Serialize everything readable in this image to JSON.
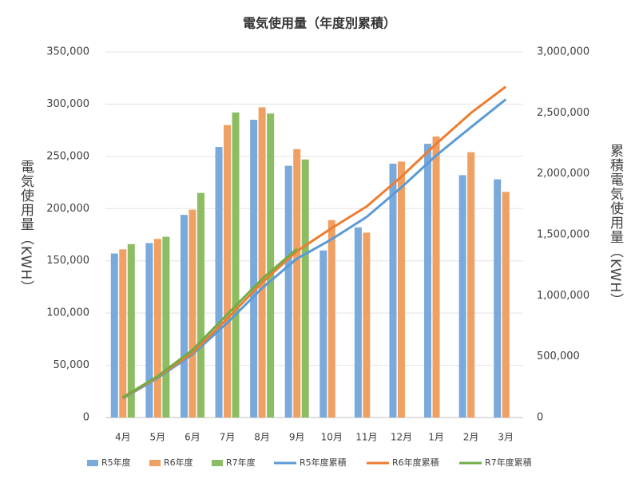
{
  "chart_data": {
    "type": "bar",
    "title": "電気使用量（年度別累積）",
    "y_label": "電気使用量（KWH）",
    "y2_label": "累積電気使用量（KWH）",
    "categories": [
      "4月",
      "5月",
      "6月",
      "7月",
      "8月",
      "9月",
      "10月",
      "11月",
      "12月",
      "1月",
      "2月",
      "3月"
    ],
    "series": [
      {
        "name": "R5年度",
        "color": "#7aa9db",
        "values": [
          157000,
          167000,
          194000,
          259000,
          285000,
          241000,
          160000,
          182000,
          243000,
          262000,
          232000,
          228000
        ]
      },
      {
        "name": "R6年度",
        "color": "#f0a062",
        "values": [
          161000,
          171000,
          199000,
          280000,
          297000,
          257000,
          189000,
          177000,
          245000,
          269000,
          254000,
          216000
        ]
      },
      {
        "name": "R7年度",
        "color": "#8dbd62",
        "values": [
          166000,
          173000,
          215000,
          292000,
          291000,
          247000,
          null,
          null,
          null,
          null,
          null,
          null
        ]
      },
      {
        "name": "R5年度累積",
        "type": "line",
        "axis": "y2",
        "color": "#5b9bd5",
        "values": [
          157000,
          324000,
          518000,
          777000,
          1062000,
          1303000,
          1463000,
          1645000,
          1888000,
          2150000,
          2382000,
          2610000
        ]
      },
      {
        "name": "R6年度累積",
        "type": "line",
        "axis": "y2",
        "color": "#ed7d31",
        "values": [
          161000,
          332000,
          531000,
          811000,
          1108000,
          1365000,
          1554000,
          1731000,
          1976000,
          2245000,
          2499000,
          2715000
        ]
      },
      {
        "name": "R7年度累積",
        "type": "line",
        "axis": "y2",
        "color": "#70ad47",
        "values": [
          166000,
          339000,
          554000,
          846000,
          1137000,
          1384000,
          null,
          null,
          null,
          null,
          null,
          null
        ]
      }
    ],
    "ylim": [
      0,
      350000
    ],
    "yticks": [
      0,
      {
        "value": 50000,
        "label": "50,000"
      },
      {
        "value": 100000,
        "label": "100,000"
      },
      {
        "value": 150000,
        "label": "150,000"
      },
      {
        "value": 200000,
        "label": "200,000"
      },
      {
        "value": 250000,
        "label": "250,000"
      },
      {
        "value": 300000,
        "label": "300,000"
      },
      {
        "value": 350000,
        "label": "350,000"
      }
    ],
    "y2lim": [
      0,
      3000000
    ],
    "y2ticks": [
      0,
      {
        "value": 500000,
        "label": "500,000"
      },
      {
        "value": 1000000,
        "label": "1,000,000"
      },
      {
        "value": 1500000,
        "label": "1,500,000"
      },
      {
        "value": 2000000,
        "label": "2,000,000"
      },
      {
        "value": 2500000,
        "label": "2,500,000"
      },
      {
        "value": 3000000,
        "label": "3,000,000"
      }
    ],
    "grid": true,
    "legend": "bottom"
  }
}
